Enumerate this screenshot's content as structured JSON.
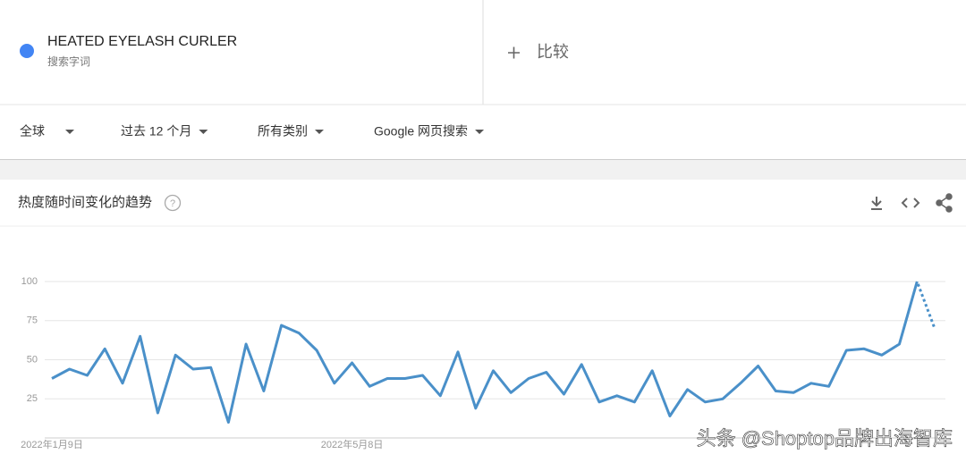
{
  "search": {
    "term": "HEATED EYELASH CURLER",
    "term_type": "搜索字词",
    "compare": "比较"
  },
  "filters": [
    "全球",
    "过去 12 个月",
    "所有类别",
    "Google 网页搜索"
  ],
  "watermark": "头条 @Shoptop品牌出海智库",
  "chart_data": {
    "type": "line",
    "title": "热度随时间变化的趋势",
    "categories": [
      "2022年1月9日",
      null,
      null,
      null,
      null,
      null,
      null,
      null,
      null,
      null,
      null,
      null,
      null,
      null,
      null,
      null,
      null,
      "2022年5月8日",
      null,
      null,
      null,
      null,
      null,
      null,
      null,
      null,
      null,
      null,
      null,
      null,
      null,
      null,
      null,
      null,
      null,
      null,
      null,
      null,
      null,
      null,
      null,
      null,
      null,
      null,
      null,
      null,
      null,
      null,
      null,
      null,
      null
    ],
    "series": [
      {
        "name": "HEATED EYELASH CURLER",
        "color": "#4a90c9",
        "values": [
          38,
          44,
          40,
          57,
          35,
          65,
          16,
          53,
          44,
          45,
          10,
          60,
          30,
          72,
          67,
          56,
          35,
          48,
          33,
          38,
          38,
          40,
          27,
          55,
          19,
          43,
          29,
          38,
          42,
          28,
          47,
          23,
          27,
          23,
          43,
          14,
          31,
          23,
          25,
          35,
          46,
          30,
          29,
          35,
          33,
          56,
          57,
          53,
          60,
          100,
          70
        ]
      }
    ],
    "dotted_last_point": true,
    "ylim": [
      0,
      100
    ],
    "yticks": [
      25,
      50,
      75,
      100
    ],
    "grid": true
  }
}
